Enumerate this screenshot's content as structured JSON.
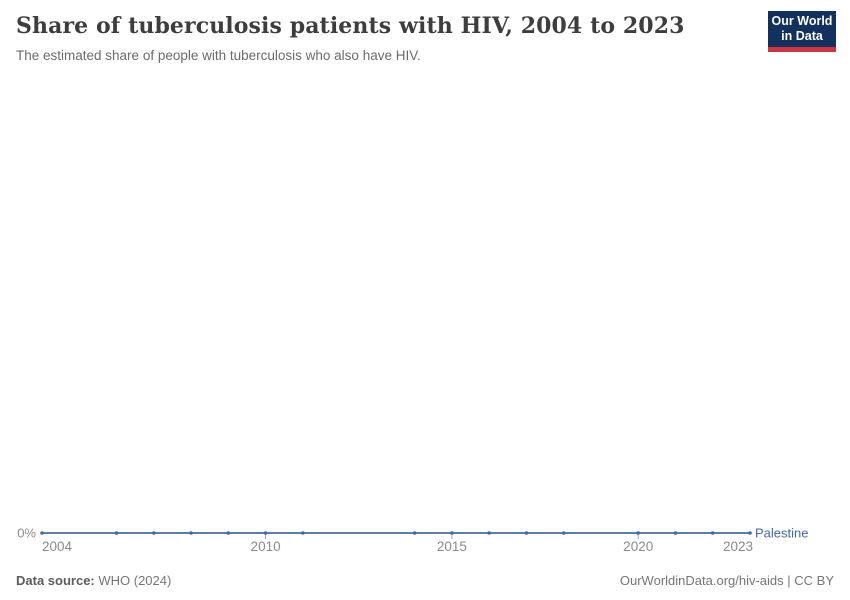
{
  "header": {
    "title": "Share of tuberculosis patients with HIV, 2004 to 2023",
    "subtitle": "The estimated share of people with tuberculosis who also have HIV."
  },
  "logo": {
    "line1": "Our World",
    "line2": "in Data",
    "bg_color": "#12315e",
    "stripe_color": "#d2353f"
  },
  "footer": {
    "source_label": "Data source:",
    "source_value": " WHO (2024)",
    "credit": "OurWorldinData.org/hiv-aids | CC BY"
  },
  "chart_data": {
    "type": "line",
    "title": "Share of tuberculosis patients with HIV, 2004 to 2023",
    "subtitle": "The estimated share of people with tuberculosis who also have HIV.",
    "series": [
      {
        "name": "Palestine",
        "color": "#4468ad",
        "unit": "%",
        "x": [
          2004,
          2006,
          2007,
          2008,
          2009,
          2010,
          2011,
          2014,
          2015,
          2016,
          2017,
          2018,
          2020,
          2021,
          2022,
          2023
        ],
        "values": [
          0,
          0,
          0,
          0,
          0,
          0,
          0,
          0,
          0,
          0,
          0,
          0,
          0,
          0,
          0,
          0
        ]
      }
    ],
    "x_range": [
      2004,
      2023
    ],
    "x_ticks": [
      2004,
      2010,
      2015,
      2020,
      2023
    ],
    "y_ticks": [
      {
        "value": 0,
        "label": "0%"
      }
    ],
    "ylim": [
      0,
      100
    ],
    "grid": false,
    "legend": "inline-end-label",
    "tick_color": "#a5a5a5",
    "axis_text_color": "#8a8a8a"
  }
}
